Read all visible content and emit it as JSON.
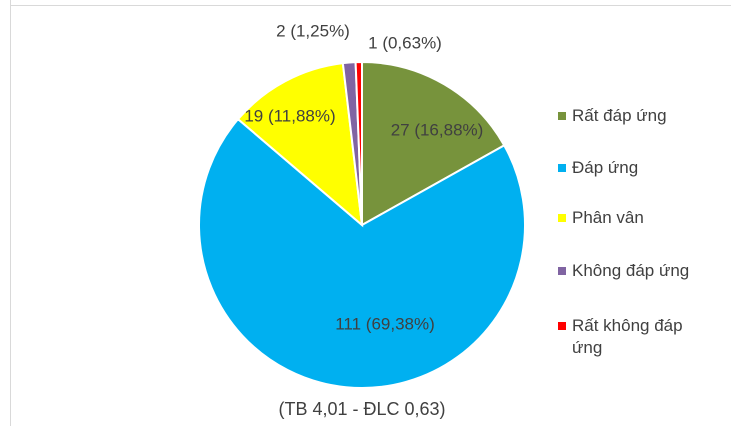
{
  "chart_data": {
    "type": "pie",
    "categories": [
      "Rất đáp ứng",
      "Đáp ứng",
      "Phân vân",
      "Không đáp ứng",
      "Rất không đáp ứng"
    ],
    "values": [
      27,
      111,
      19,
      2,
      1
    ],
    "value_labels": [
      "27 (16,88%)",
      "111 (69,38%)",
      "19 (11,88%)",
      "2 (1,25%)",
      "1 (0,63%)"
    ],
    "colors": [
      "#77933c",
      "#00b0f0",
      "#ffff00",
      "#8064a2",
      "#ff0000"
    ],
    "caption": "(TB 4,01 - ĐLC 0,63)"
  }
}
